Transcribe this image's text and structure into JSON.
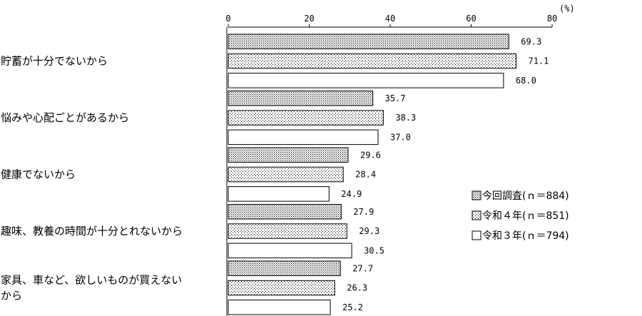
{
  "chart_data": {
    "type": "bar",
    "orientation": "horizontal",
    "unit": "(%)",
    "xlim": [
      0,
      80
    ],
    "ticks": [
      0,
      20,
      40,
      60,
      80
    ],
    "categories": [
      "貯蓄が十分でないから",
      "悩みや心配ごとがあるから",
      "健康でないから",
      "趣味、教養の時間が十分とれないから",
      "家具、車など、欲しいものが買えないから"
    ],
    "category_lines": [
      [
        "貯蓄が十分でないから"
      ],
      [
        "悩みや心配ごとがあるから"
      ],
      [
        "健康でないから"
      ],
      [
        "趣味、教養の時間が十分とれないから"
      ],
      [
        "家具、車など、欲しいものが買えない",
        "から"
      ]
    ],
    "series": [
      {
        "name": "今回調査(ｎ＝884)",
        "values": [
          69.3,
          35.7,
          29.6,
          27.9,
          27.7
        ],
        "pattern": "dense-dots"
      },
      {
        "name": "令和４年(ｎ＝851)",
        "values": [
          71.1,
          38.3,
          28.4,
          29.3,
          26.3
        ],
        "pattern": "sparse-dots"
      },
      {
        "name": "令和３年(ｎ＝794)",
        "values": [
          68.0,
          37.0,
          24.9,
          30.5,
          25.2
        ],
        "pattern": "none"
      }
    ],
    "legend_position": "right"
  }
}
